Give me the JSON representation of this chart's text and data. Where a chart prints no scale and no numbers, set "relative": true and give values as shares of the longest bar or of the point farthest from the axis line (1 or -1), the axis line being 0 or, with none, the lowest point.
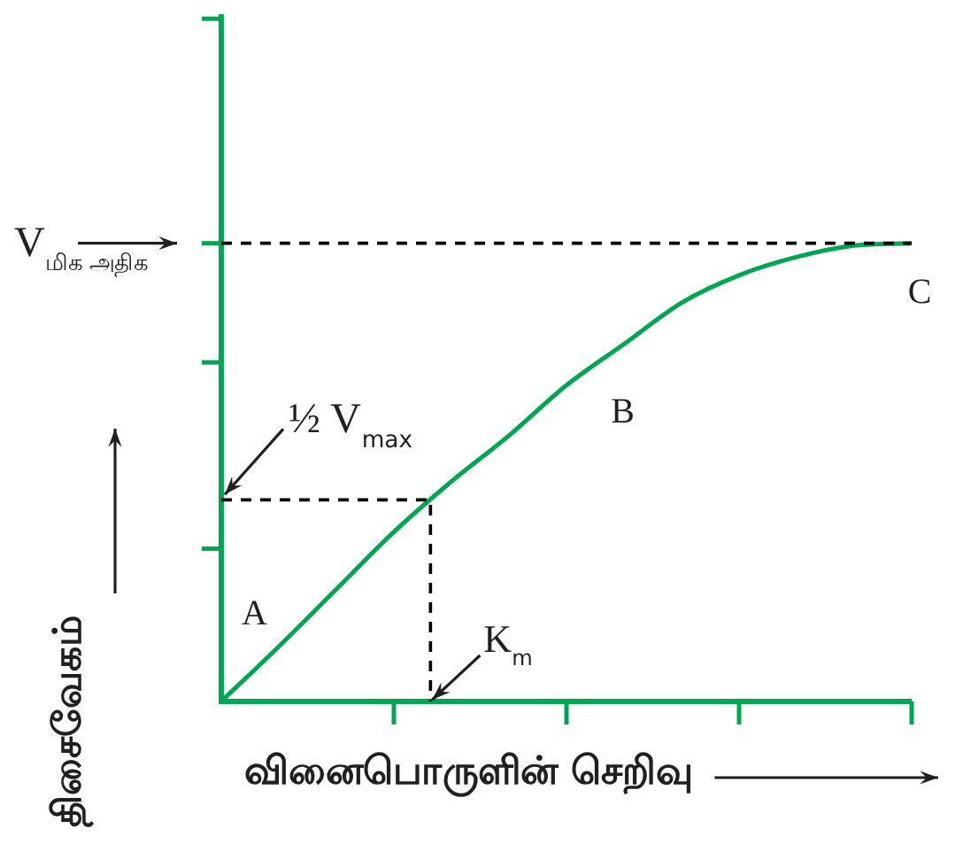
{
  "chart_data": {
    "type": "line",
    "relative": true,
    "xlabel": "வினைபொருளின் செறிவு",
    "ylabel": "திசைவேகம்",
    "categories": [
      null,
      null,
      null,
      null,
      null,
      null,
      null,
      null,
      null,
      null,
      null,
      null,
      null
    ],
    "series": [
      {
        "color": "#00a651",
        "values": [
          0,
          0.12,
          0.245,
          0.37,
          0.48,
          0.58,
          0.69,
          0.78,
          0.87,
          0.93,
          0.97,
          0.995,
          1
        ]
      }
    ],
    "ref_lines": [
      {
        "axis": "y",
        "value": 1,
        "label": "V$_{மிக அதிக}$",
        "line_style": "dashed",
        "color": "#000000"
      },
      {
        "axis": "y",
        "value": 0.44,
        "label": "½ V$_{max}$",
        "line_style": "dashed",
        "color": "#000000"
      }
    ],
    "annotations": [
      "A",
      "B",
      "C",
      "K$_{m}$"
    ],
    "legend": false,
    "marker": "none",
    "line_style": "solid"
  }
}
